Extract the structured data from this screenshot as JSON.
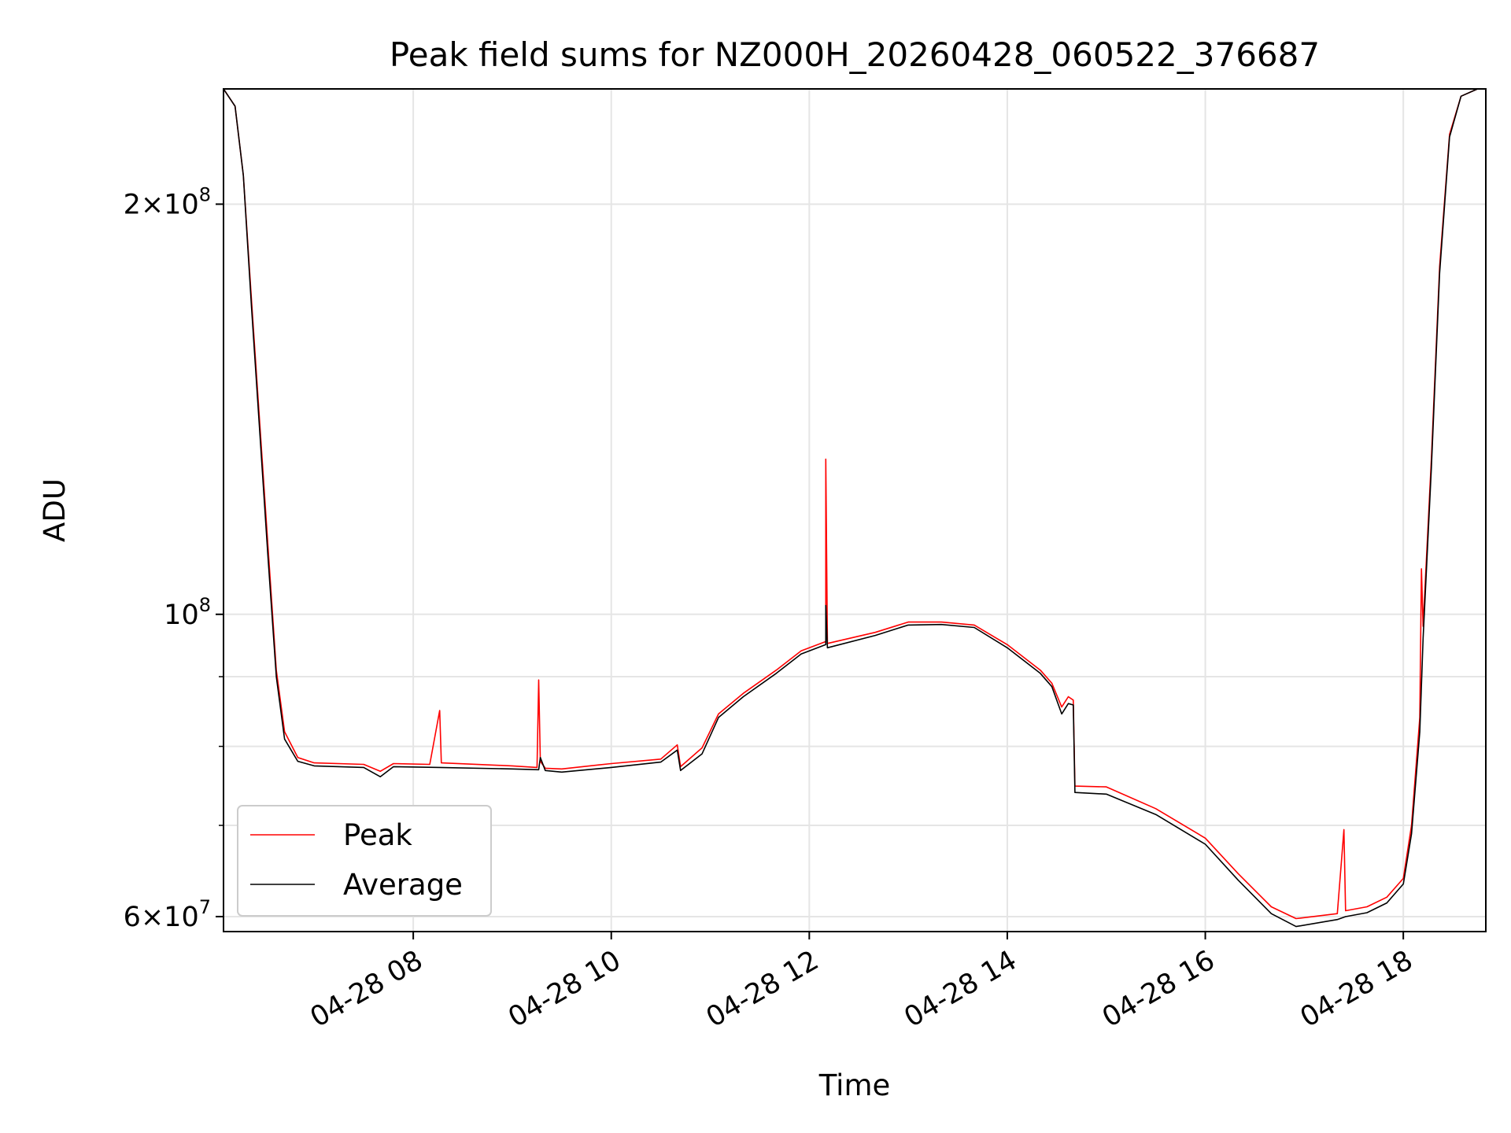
{
  "chart_data": {
    "type": "line",
    "title": "Peak field sums for NZ000H_20260428_060522_376687",
    "xlabel": "Time",
    "ylabel": "ADU",
    "y_scale": "log",
    "x_range": [
      "2026-04-28 06:05",
      "2026-04-28 18:50"
    ],
    "ylim": [
      58500000,
      243000000
    ],
    "grid": true,
    "legend_position": "lower-left",
    "x_ticks": [
      {
        "t": "2026-04-28 08:00",
        "label": "04-28 08"
      },
      {
        "t": "2026-04-28 10:00",
        "label": "04-28 10"
      },
      {
        "t": "2026-04-28 12:00",
        "label": "04-28 12"
      },
      {
        "t": "2026-04-28 14:00",
        "label": "04-28 14"
      },
      {
        "t": "2026-04-28 16:00",
        "label": "04-28 16"
      },
      {
        "t": "2026-04-28 18:00",
        "label": "04-28 18"
      }
    ],
    "y_ticks_major": [
      {
        "value": 60000000,
        "mant": "6",
        "exp": "7"
      },
      {
        "value": 100000000,
        "mant": "",
        "exp": "8"
      },
      {
        "value": 200000000,
        "mant": "2",
        "exp": "8"
      }
    ],
    "y_ticks_minor": [
      70000000,
      80000000,
      90000000
    ],
    "series": [
      {
        "name": "Peak",
        "color": "#ff0000",
        "points": [
          [
            "2026-04-28 06:05",
            243000000
          ],
          [
            "2026-04-28 06:12",
            236000000
          ],
          [
            "2026-04-28 06:17",
            210000000
          ],
          [
            "2026-04-28 06:22",
            170000000
          ],
          [
            "2026-04-28 06:27",
            138000000
          ],
          [
            "2026-04-28 06:32",
            112000000
          ],
          [
            "2026-04-28 06:37",
            91000000
          ],
          [
            "2026-04-28 06:42",
            82000000
          ],
          [
            "2026-04-28 06:50",
            78500000
          ],
          [
            "2026-04-28 07:00",
            77800000
          ],
          [
            "2026-04-28 07:30",
            77600000
          ],
          [
            "2026-04-28 07:40",
            76700000
          ],
          [
            "2026-04-28 07:48",
            77700000
          ],
          [
            "2026-04-28 08:10",
            77600000
          ],
          [
            "2026-04-28 08:16",
            85000000
          ],
          [
            "2026-04-28 08:17",
            77800000
          ],
          [
            "2026-04-28 09:00",
            77400000
          ],
          [
            "2026-04-28 09:15",
            77200000
          ],
          [
            "2026-04-28 09:16",
            89500000
          ],
          [
            "2026-04-28 09:17",
            78000000
          ],
          [
            "2026-04-28 09:20",
            77100000
          ],
          [
            "2026-04-28 09:30",
            77000000
          ],
          [
            "2026-04-28 10:00",
            77700000
          ],
          [
            "2026-04-28 10:30",
            78300000
          ],
          [
            "2026-04-28 10:40",
            80200000
          ],
          [
            "2026-04-28 10:42",
            77300000
          ],
          [
            "2026-04-28 10:55",
            79800000
          ],
          [
            "2026-04-28 11:05",
            84500000
          ],
          [
            "2026-04-28 11:20",
            87500000
          ],
          [
            "2026-04-28 11:40",
            91000000
          ],
          [
            "2026-04-28 11:55",
            94000000
          ],
          [
            "2026-04-28 12:10",
            95500000
          ],
          [
            "2026-04-28 12:10",
            130000000
          ],
          [
            "2026-04-28 12:11",
            95200000
          ],
          [
            "2026-04-28 12:40",
            97000000
          ],
          [
            "2026-04-28 13:00",
            98700000
          ],
          [
            "2026-04-28 13:20",
            98700000
          ],
          [
            "2026-04-28 13:40",
            98200000
          ],
          [
            "2026-04-28 14:00",
            95000000
          ],
          [
            "2026-04-28 14:20",
            91000000
          ],
          [
            "2026-04-28 14:27",
            89000000
          ],
          [
            "2026-04-28 14:33",
            85500000
          ],
          [
            "2026-04-28 14:37",
            87000000
          ],
          [
            "2026-04-28 14:40",
            86500000
          ],
          [
            "2026-04-28 14:41",
            74800000
          ],
          [
            "2026-04-28 15:00",
            74700000
          ],
          [
            "2026-04-28 15:30",
            72000000
          ],
          [
            "2026-04-28 16:00",
            68500000
          ],
          [
            "2026-04-28 16:20",
            64500000
          ],
          [
            "2026-04-28 16:40",
            61000000
          ],
          [
            "2026-04-28 16:55",
            59800000
          ],
          [
            "2026-04-28 17:20",
            60300000
          ],
          [
            "2026-04-28 17:24",
            69500000
          ],
          [
            "2026-04-28 17:25",
            60600000
          ],
          [
            "2026-04-28 17:38",
            61000000
          ],
          [
            "2026-04-28 17:50",
            62000000
          ],
          [
            "2026-04-28 18:00",
            64000000
          ],
          [
            "2026-04-28 18:05",
            70000000
          ],
          [
            "2026-04-28 18:10",
            84000000
          ],
          [
            "2026-04-28 18:11",
            108000000
          ],
          [
            "2026-04-28 18:12",
            98000000
          ],
          [
            "2026-04-28 18:17",
            130000000
          ],
          [
            "2026-04-28 18:22",
            180000000
          ],
          [
            "2026-04-28 18:28",
            225000000
          ],
          [
            "2026-04-28 18:35",
            240000000
          ],
          [
            "2026-04-28 18:45",
            243000000
          ]
        ]
      },
      {
        "name": "Average",
        "color": "#000000",
        "points": [
          [
            "2026-04-28 06:05",
            243000000
          ],
          [
            "2026-04-28 06:12",
            236000000
          ],
          [
            "2026-04-28 06:17",
            210000000
          ],
          [
            "2026-04-28 06:22",
            168000000
          ],
          [
            "2026-04-28 06:27",
            136000000
          ],
          [
            "2026-04-28 06:32",
            110000000
          ],
          [
            "2026-04-28 06:37",
            90000000
          ],
          [
            "2026-04-28 06:42",
            81000000
          ],
          [
            "2026-04-28 06:50",
            78000000
          ],
          [
            "2026-04-28 07:00",
            77400000
          ],
          [
            "2026-04-28 07:30",
            77200000
          ],
          [
            "2026-04-28 07:40",
            76000000
          ],
          [
            "2026-04-28 07:48",
            77300000
          ],
          [
            "2026-04-28 08:16",
            77200000
          ],
          [
            "2026-04-28 09:00",
            77000000
          ],
          [
            "2026-04-28 09:16",
            76900000
          ],
          [
            "2026-04-28 09:17",
            78500000
          ],
          [
            "2026-04-28 09:20",
            76800000
          ],
          [
            "2026-04-28 09:30",
            76600000
          ],
          [
            "2026-04-28 10:00",
            77200000
          ],
          [
            "2026-04-28 10:30",
            77900000
          ],
          [
            "2026-04-28 10:40",
            79500000
          ],
          [
            "2026-04-28 10:42",
            76800000
          ],
          [
            "2026-04-28 10:55",
            79000000
          ],
          [
            "2026-04-28 11:05",
            84000000
          ],
          [
            "2026-04-28 11:20",
            87000000
          ],
          [
            "2026-04-28 11:40",
            90500000
          ],
          [
            "2026-04-28 11:55",
            93500000
          ],
          [
            "2026-04-28 12:10",
            95000000
          ],
          [
            "2026-04-28 12:10",
            101500000
          ],
          [
            "2026-04-28 12:11",
            94500000
          ],
          [
            "2026-04-28 12:40",
            96500000
          ],
          [
            "2026-04-28 13:00",
            98200000
          ],
          [
            "2026-04-28 13:20",
            98300000
          ],
          [
            "2026-04-28 13:40",
            97800000
          ],
          [
            "2026-04-28 14:00",
            94500000
          ],
          [
            "2026-04-28 14:20",
            90500000
          ],
          [
            "2026-04-28 14:27",
            88500000
          ],
          [
            "2026-04-28 14:33",
            84500000
          ],
          [
            "2026-04-28 14:37",
            86000000
          ],
          [
            "2026-04-28 14:40",
            85800000
          ],
          [
            "2026-04-28 14:41",
            74000000
          ],
          [
            "2026-04-28 15:00",
            73800000
          ],
          [
            "2026-04-28 15:30",
            71300000
          ],
          [
            "2026-04-28 16:00",
            67800000
          ],
          [
            "2026-04-28 16:20",
            63800000
          ],
          [
            "2026-04-28 16:40",
            60300000
          ],
          [
            "2026-04-28 16:55",
            59000000
          ],
          [
            "2026-04-28 17:20",
            59700000
          ],
          [
            "2026-04-28 17:25",
            60000000
          ],
          [
            "2026-04-28 17:38",
            60400000
          ],
          [
            "2026-04-28 17:50",
            61400000
          ],
          [
            "2026-04-28 18:00",
            63400000
          ],
          [
            "2026-04-28 18:05",
            69000000
          ],
          [
            "2026-04-28 18:10",
            82000000
          ],
          [
            "2026-04-28 18:12",
            96000000
          ],
          [
            "2026-04-28 18:17",
            128000000
          ],
          [
            "2026-04-28 18:22",
            178000000
          ],
          [
            "2026-04-28 18:28",
            224000000
          ],
          [
            "2026-04-28 18:35",
            240000000
          ],
          [
            "2026-04-28 18:45",
            243000000
          ]
        ]
      }
    ]
  }
}
